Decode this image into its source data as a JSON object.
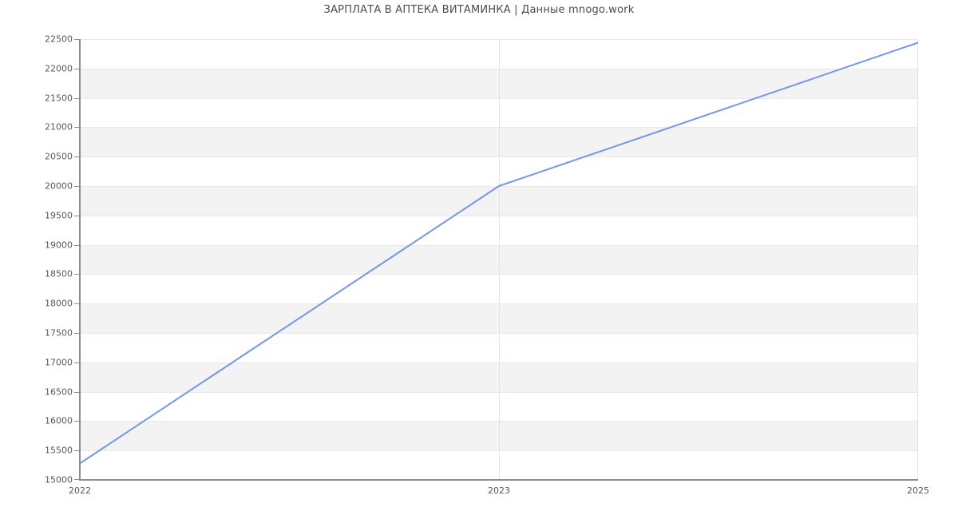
{
  "title": "ЗАРПЛАТА В АПТЕКА ВИТАМИНКА | Данные mnogo.work",
  "chart_data": {
    "type": "line",
    "title": "ЗАРПЛАТА В АПТЕКА ВИТАМИНКА | Данные mnogo.work",
    "x": [
      "2022",
      "2023",
      "2025"
    ],
    "values": [
      15280,
      20000,
      22440
    ],
    "xlabel": "",
    "ylabel": "",
    "ylim": [
      15000,
      22500
    ],
    "ytick_step": 500,
    "y_tick_labels": [
      "15000",
      "15500",
      "16000",
      "16500",
      "17000",
      "17500",
      "18000",
      "18500",
      "19000",
      "19500",
      "20000",
      "20500",
      "21000",
      "21500",
      "22000",
      "22500"
    ],
    "grid": true,
    "legend_position": "none",
    "colors": {
      "line": "#7398e8",
      "band": "#f3f3f3",
      "grid": "#e9e9e9",
      "vgrid": "#e4e4e4",
      "axis": "#8c8c8c",
      "title_text": "#4c4c4c",
      "tick_text": "#585858"
    }
  }
}
